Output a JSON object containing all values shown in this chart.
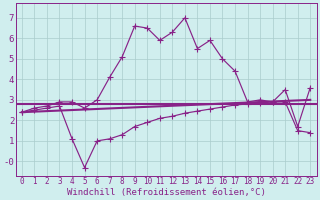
{
  "bg_color": "#d0eeee",
  "line_color": "#882288",
  "grid_color": "#aacccc",
  "xlabel": "Windchill (Refroidissement éolien,°C)",
  "xlabel_fontsize": 6.5,
  "xtick_fontsize": 5.5,
  "ytick_fontsize": 6.5,
  "ylim": [
    -0.7,
    7.7
  ],
  "xlim": [
    -0.5,
    23.5
  ],
  "yticks": [
    0,
    1,
    2,
    3,
    4,
    5,
    6,
    7
  ],
  "ytick_labels": [
    "-0",
    "1",
    "2",
    "3",
    "4",
    "5",
    "6",
    "7"
  ],
  "xticks": [
    0,
    1,
    2,
    3,
    4,
    5,
    6,
    7,
    8,
    9,
    10,
    11,
    12,
    13,
    14,
    15,
    16,
    17,
    18,
    19,
    20,
    21,
    22,
    23
  ],
  "series1_x": [
    0,
    1,
    2,
    3,
    4,
    5,
    6,
    7,
    8,
    9,
    10,
    11,
    12,
    13,
    14,
    15,
    16,
    17,
    18,
    19,
    20,
    21,
    22,
    23
  ],
  "series1_y": [
    2.4,
    2.6,
    2.7,
    2.9,
    2.9,
    2.6,
    3.0,
    4.1,
    5.1,
    6.6,
    6.5,
    5.9,
    6.3,
    7.0,
    5.5,
    5.9,
    5.0,
    4.4,
    2.9,
    3.0,
    2.9,
    3.5,
    1.7,
    3.6
  ],
  "series2_x": [
    0,
    1,
    2,
    3,
    4,
    5,
    6,
    7,
    8,
    9,
    10,
    11,
    12,
    13,
    14,
    15,
    16,
    17,
    18,
    19,
    20,
    21,
    22,
    23
  ],
  "series2_y": [
    2.4,
    2.5,
    2.6,
    2.7,
    1.1,
    -0.3,
    1.0,
    1.1,
    1.3,
    1.7,
    1.9,
    2.1,
    2.2,
    2.35,
    2.45,
    2.55,
    2.65,
    2.75,
    2.8,
    2.85,
    2.9,
    2.9,
    1.5,
    1.4
  ],
  "series3_x": [
    0,
    23
  ],
  "series3_y": [
    2.4,
    3.0
  ],
  "flat_line_y": 2.78,
  "marker": "+",
  "marker_size": 5,
  "linewidth": 0.85,
  "flat_linewidth": 1.5
}
